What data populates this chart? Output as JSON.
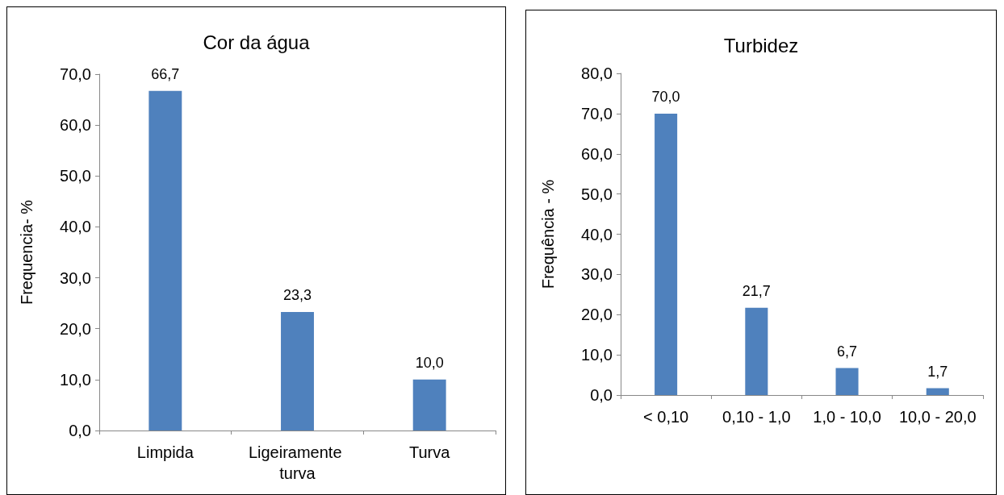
{
  "chart_data": [
    {
      "type": "bar",
      "title": "Cor da água",
      "ylabel": "Frequencia- %",
      "categories": [
        "Limpida",
        "Ligeiramente turva",
        "Turva"
      ],
      "values": [
        66.7,
        23.3,
        10.0
      ],
      "value_labels": [
        "66,7",
        "23,3",
        "10,0"
      ],
      "color": "#4f81bd",
      "ylim": [
        0,
        70
      ],
      "yticks": [
        {
          "value": 0,
          "label": "0,0"
        },
        {
          "value": 10,
          "label": "10,0"
        },
        {
          "value": 20,
          "label": "20,0"
        },
        {
          "value": 30,
          "label": "30,0"
        },
        {
          "value": 40,
          "label": "40,0"
        },
        {
          "value": 50,
          "label": "50,0"
        },
        {
          "value": 60,
          "label": "60,0"
        },
        {
          "value": 70,
          "label": "70,0"
        }
      ],
      "grid": false
    },
    {
      "type": "bar",
      "title": "Turbidez",
      "ylabel": "Frequência - %",
      "categories": [
        "< 0,10",
        "0,10 - 1,0",
        "1,0 - 10,0",
        "10,0 - 20,0"
      ],
      "values": [
        70.0,
        21.7,
        6.7,
        1.7
      ],
      "value_labels": [
        "70,0",
        "21,7",
        "6,7",
        "1,7"
      ],
      "color": "#4f81bd",
      "ylim": [
        0,
        80
      ],
      "yticks": [
        {
          "value": 0,
          "label": "0,0"
        },
        {
          "value": 10,
          "label": "10,0"
        },
        {
          "value": 20,
          "label": "20,0"
        },
        {
          "value": 30,
          "label": "30,0"
        },
        {
          "value": 40,
          "label": "40,0"
        },
        {
          "value": 50,
          "label": "50,0"
        },
        {
          "value": 60,
          "label": "60,0"
        },
        {
          "value": 70,
          "label": "70,0"
        },
        {
          "value": 80,
          "label": "80,0"
        }
      ],
      "grid": false
    }
  ]
}
